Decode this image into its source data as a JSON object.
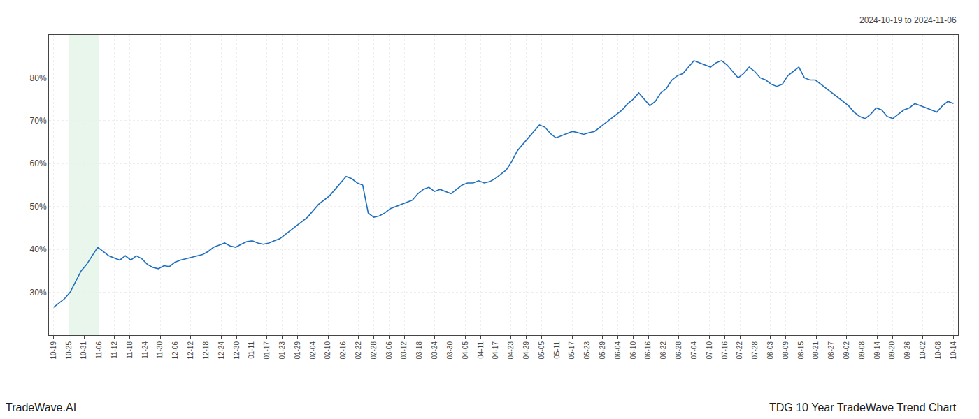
{
  "chart_data": {
    "type": "line",
    "color": "#1f6fbf",
    "grid": true,
    "annotations": [
      "2024-10-19 to 2024-11-06",
      "TradeWave.AI",
      "TDG 10 Year TradeWave Trend Chart"
    ],
    "shade": {
      "start": 1,
      "end": 3,
      "color": "#d4edda"
    },
    "xlim": [
      -0.3,
      59.3
    ],
    "xticks": [
      {
        "value": 0,
        "label": "10-19"
      },
      {
        "value": 1,
        "label": "10-25"
      },
      {
        "value": 2,
        "label": "10-31"
      },
      {
        "value": 3,
        "label": "11-06"
      },
      {
        "value": 4,
        "label": "11-12"
      },
      {
        "value": 5,
        "label": "11-18"
      },
      {
        "value": 6,
        "label": "11-24"
      },
      {
        "value": 7,
        "label": "11-30"
      },
      {
        "value": 8,
        "label": "12-06"
      },
      {
        "value": 9,
        "label": "12-12"
      },
      {
        "value": 10,
        "label": "12-18"
      },
      {
        "value": 11,
        "label": "12-24"
      },
      {
        "value": 12,
        "label": "12-30"
      },
      {
        "value": 13,
        "label": "01-11"
      },
      {
        "value": 14,
        "label": "01-17"
      },
      {
        "value": 15,
        "label": "01-23"
      },
      {
        "value": 16,
        "label": "01-29"
      },
      {
        "value": 17,
        "label": "02-04"
      },
      {
        "value": 18,
        "label": "02-10"
      },
      {
        "value": 19,
        "label": "02-16"
      },
      {
        "value": 20,
        "label": "02-22"
      },
      {
        "value": 21,
        "label": "02-28"
      },
      {
        "value": 22,
        "label": "03-06"
      },
      {
        "value": 23,
        "label": "03-12"
      },
      {
        "value": 24,
        "label": "03-18"
      },
      {
        "value": 25,
        "label": "03-24"
      },
      {
        "value": 26,
        "label": "03-30"
      },
      {
        "value": 27,
        "label": "04-05"
      },
      {
        "value": 28,
        "label": "04-11"
      },
      {
        "value": 29,
        "label": "04-17"
      },
      {
        "value": 30,
        "label": "04-23"
      },
      {
        "value": 31,
        "label": "04-29"
      },
      {
        "value": 32,
        "label": "05-05"
      },
      {
        "value": 33,
        "label": "05-11"
      },
      {
        "value": 34,
        "label": "05-17"
      },
      {
        "value": 35,
        "label": "05-23"
      },
      {
        "value": 36,
        "label": "05-29"
      },
      {
        "value": 37,
        "label": "06-04"
      },
      {
        "value": 38,
        "label": "06-10"
      },
      {
        "value": 39,
        "label": "06-16"
      },
      {
        "value": 40,
        "label": "06-22"
      },
      {
        "value": 41,
        "label": "06-28"
      },
      {
        "value": 42,
        "label": "07-04"
      },
      {
        "value": 43,
        "label": "07-10"
      },
      {
        "value": 44,
        "label": "07-16"
      },
      {
        "value": 45,
        "label": "07-22"
      },
      {
        "value": 46,
        "label": "07-28"
      },
      {
        "value": 47,
        "label": "08-03"
      },
      {
        "value": 48,
        "label": "08-09"
      },
      {
        "value": 49,
        "label": "08-15"
      },
      {
        "value": 50,
        "label": "08-21"
      },
      {
        "value": 51,
        "label": "08-27"
      },
      {
        "value": 52,
        "label": "09-02"
      },
      {
        "value": 53,
        "label": "09-08"
      },
      {
        "value": 54,
        "label": "09-14"
      },
      {
        "value": 55,
        "label": "09-20"
      },
      {
        "value": 56,
        "label": "09-26"
      },
      {
        "value": 57,
        "label": "10-02"
      },
      {
        "value": 58,
        "label": "10-08"
      },
      {
        "value": 59,
        "label": "10-14"
      }
    ],
    "ylim": [
      20,
      90
    ],
    "yticks": [
      {
        "value": 30,
        "label": "30%"
      },
      {
        "value": 40,
        "label": "40%"
      },
      {
        "value": 50,
        "label": "50%"
      },
      {
        "value": 60,
        "label": "60%"
      },
      {
        "value": 70,
        "label": "70%"
      },
      {
        "value": 80,
        "label": "80%"
      }
    ],
    "x": [
      0,
      0.362,
      0.7239,
      1.0859,
      1.4479,
      1.8098,
      2.1718,
      2.5337,
      2.8957,
      3.2577,
      3.6196,
      3.9816,
      4.3436,
      4.7055,
      5.0675,
      5.4294,
      5.7914,
      6.1534,
      6.5153,
      6.8773,
      7.2393,
      7.6012,
      7.9632,
      8.3252,
      8.6871,
      9.0491,
      9.411,
      9.773,
      10.135,
      10.4969,
      10.8589,
      11.2209,
      11.5828,
      11.9448,
      12.3067,
      12.6687,
      13.0307,
      13.3926,
      13.7546,
      14.1166,
      14.4785,
      14.8405,
      15.2025,
      15.5644,
      15.9264,
      16.2883,
      16.6503,
      17.0123,
      17.3742,
      17.7362,
      18.0982,
      18.4601,
      18.8221,
      19.184,
      19.546,
      19.908,
      20.2699,
      20.6319,
      20.9939,
      21.3558,
      21.7178,
      22.0798,
      22.4417,
      22.8037,
      23.1656,
      23.5276,
      23.8896,
      24.2515,
      24.6135,
      24.9755,
      25.3374,
      25.6994,
      26.0613,
      26.4233,
      26.7853,
      27.1472,
      27.5092,
      27.8712,
      28.2331,
      28.5951,
      28.9571,
      29.319,
      29.681,
      30.0429,
      30.4049,
      30.7669,
      31.1288,
      31.4908,
      31.8528,
      32.2147,
      32.5767,
      32.9387,
      33.3006,
      33.6626,
      34.0245,
      34.3865,
      34.7485,
      35.1104,
      35.4724,
      35.8344,
      36.1963,
      36.5583,
      36.9202,
      37.2822,
      37.6442,
      38.0061,
      38.3681,
      38.7301,
      39.092,
      39.454,
      39.816,
      40.1779,
      40.5399,
      40.9018,
      41.2638,
      41.6258,
      41.9877,
      42.3497,
      42.7117,
      43.0736,
      43.4356,
      43.7975,
      44.1595,
      44.5215,
      44.8834,
      45.2454,
      45.6074,
      45.9693,
      46.3313,
      46.6933,
      47.0552,
      47.4172,
      47.7791,
      48.1411,
      48.5031,
      48.865,
      49.227,
      49.589,
      49.9509,
      50.3129,
      50.6748,
      51.0368,
      51.3988,
      51.7607,
      52.1227,
      52.4847,
      52.8466,
      53.2086,
      53.5706,
      53.9325,
      54.2945,
      54.6564,
      55.0184,
      55.3804,
      55.7423,
      56.1043,
      56.4663,
      56.8282,
      57.1902,
      57.5521,
      57.9141,
      58.2761,
      58.638,
      59
    ],
    "values": [
      26.5,
      27.5,
      28.5,
      30.0,
      32.5,
      35.0,
      36.5,
      38.5,
      40.5,
      39.5,
      38.5,
      38.0,
      37.5,
      38.5,
      37.5,
      38.5,
      37.8,
      36.5,
      35.8,
      35.5,
      36.2,
      36.0,
      37.0,
      37.5,
      37.8,
      38.2,
      38.5,
      38.8,
      39.5,
      40.5,
      41.0,
      41.5,
      40.8,
      40.5,
      41.2,
      41.8,
      42.0,
      41.5,
      41.2,
      41.5,
      42.0,
      42.5,
      43.5,
      44.5,
      45.5,
      46.5,
      47.5,
      49.0,
      50.5,
      51.5,
      52.5,
      54.0,
      55.5,
      57.0,
      56.5,
      55.5,
      55.0,
      48.5,
      47.5,
      47.8,
      48.5,
      49.5,
      50.0,
      50.5,
      51.0,
      51.5,
      53.0,
      54.0,
      54.5,
      53.5,
      54.0,
      53.5,
      53.0,
      54.0,
      55.0,
      55.5,
      55.5,
      56.0,
      55.5,
      55.8,
      56.5,
      57.5,
      58.5,
      60.5,
      63.0,
      64.5,
      66.0,
      67.5,
      69.0,
      68.5,
      67.0,
      66.0,
      66.5,
      67.0,
      67.5,
      67.2,
      66.8,
      67.2,
      67.5,
      68.5,
      69.5,
      70.5,
      71.5,
      72.5,
      74.0,
      75.0,
      76.5,
      75.0,
      73.5,
      74.5,
      76.5,
      77.5,
      79.5,
      80.5,
      81.0,
      82.5,
      84.0,
      83.5,
      83.0,
      82.5,
      83.5,
      84.0,
      83.0,
      81.5,
      80.0,
      81.0,
      82.5,
      81.5,
      80.0,
      79.5,
      78.5,
      78.0,
      78.5,
      80.5,
      81.5,
      82.5,
      80.0,
      79.5,
      79.5,
      78.5,
      77.5,
      76.5,
      75.5,
      74.5,
      73.5,
      72.0,
      71.0,
      70.5,
      71.5,
      73.0,
      72.5,
      71.0,
      70.5,
      71.5,
      72.5,
      73.0,
      74.0,
      73.5,
      73.0,
      72.5,
      72.0,
      73.5,
      74.5,
      74.0
    ]
  }
}
